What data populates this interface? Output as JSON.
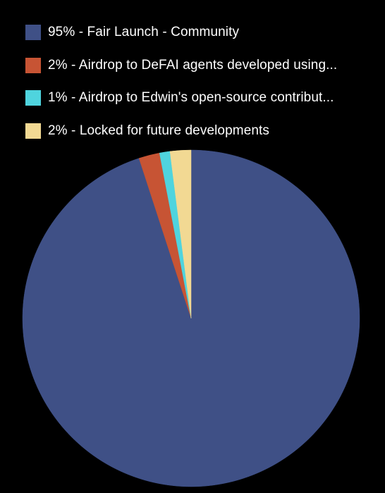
{
  "chart_data": {
    "type": "pie",
    "title": "",
    "start_angle_deg": 0,
    "direction": "clockwise",
    "legend_position": "top-left",
    "slices": [
      {
        "label": "95% - Fair Launch - Community",
        "value": 95,
        "color": "#3f5086"
      },
      {
        "label": "2% - Airdrop to DeFAI agents developed using...",
        "value": 2,
        "color": "#c75434"
      },
      {
        "label": "1% - Airdrop to Edwin's open-source contribut...",
        "value": 1,
        "color": "#4fd4de"
      },
      {
        "label": "2% - Locked for future developments",
        "value": 2,
        "color": "#f2d993"
      }
    ]
  }
}
